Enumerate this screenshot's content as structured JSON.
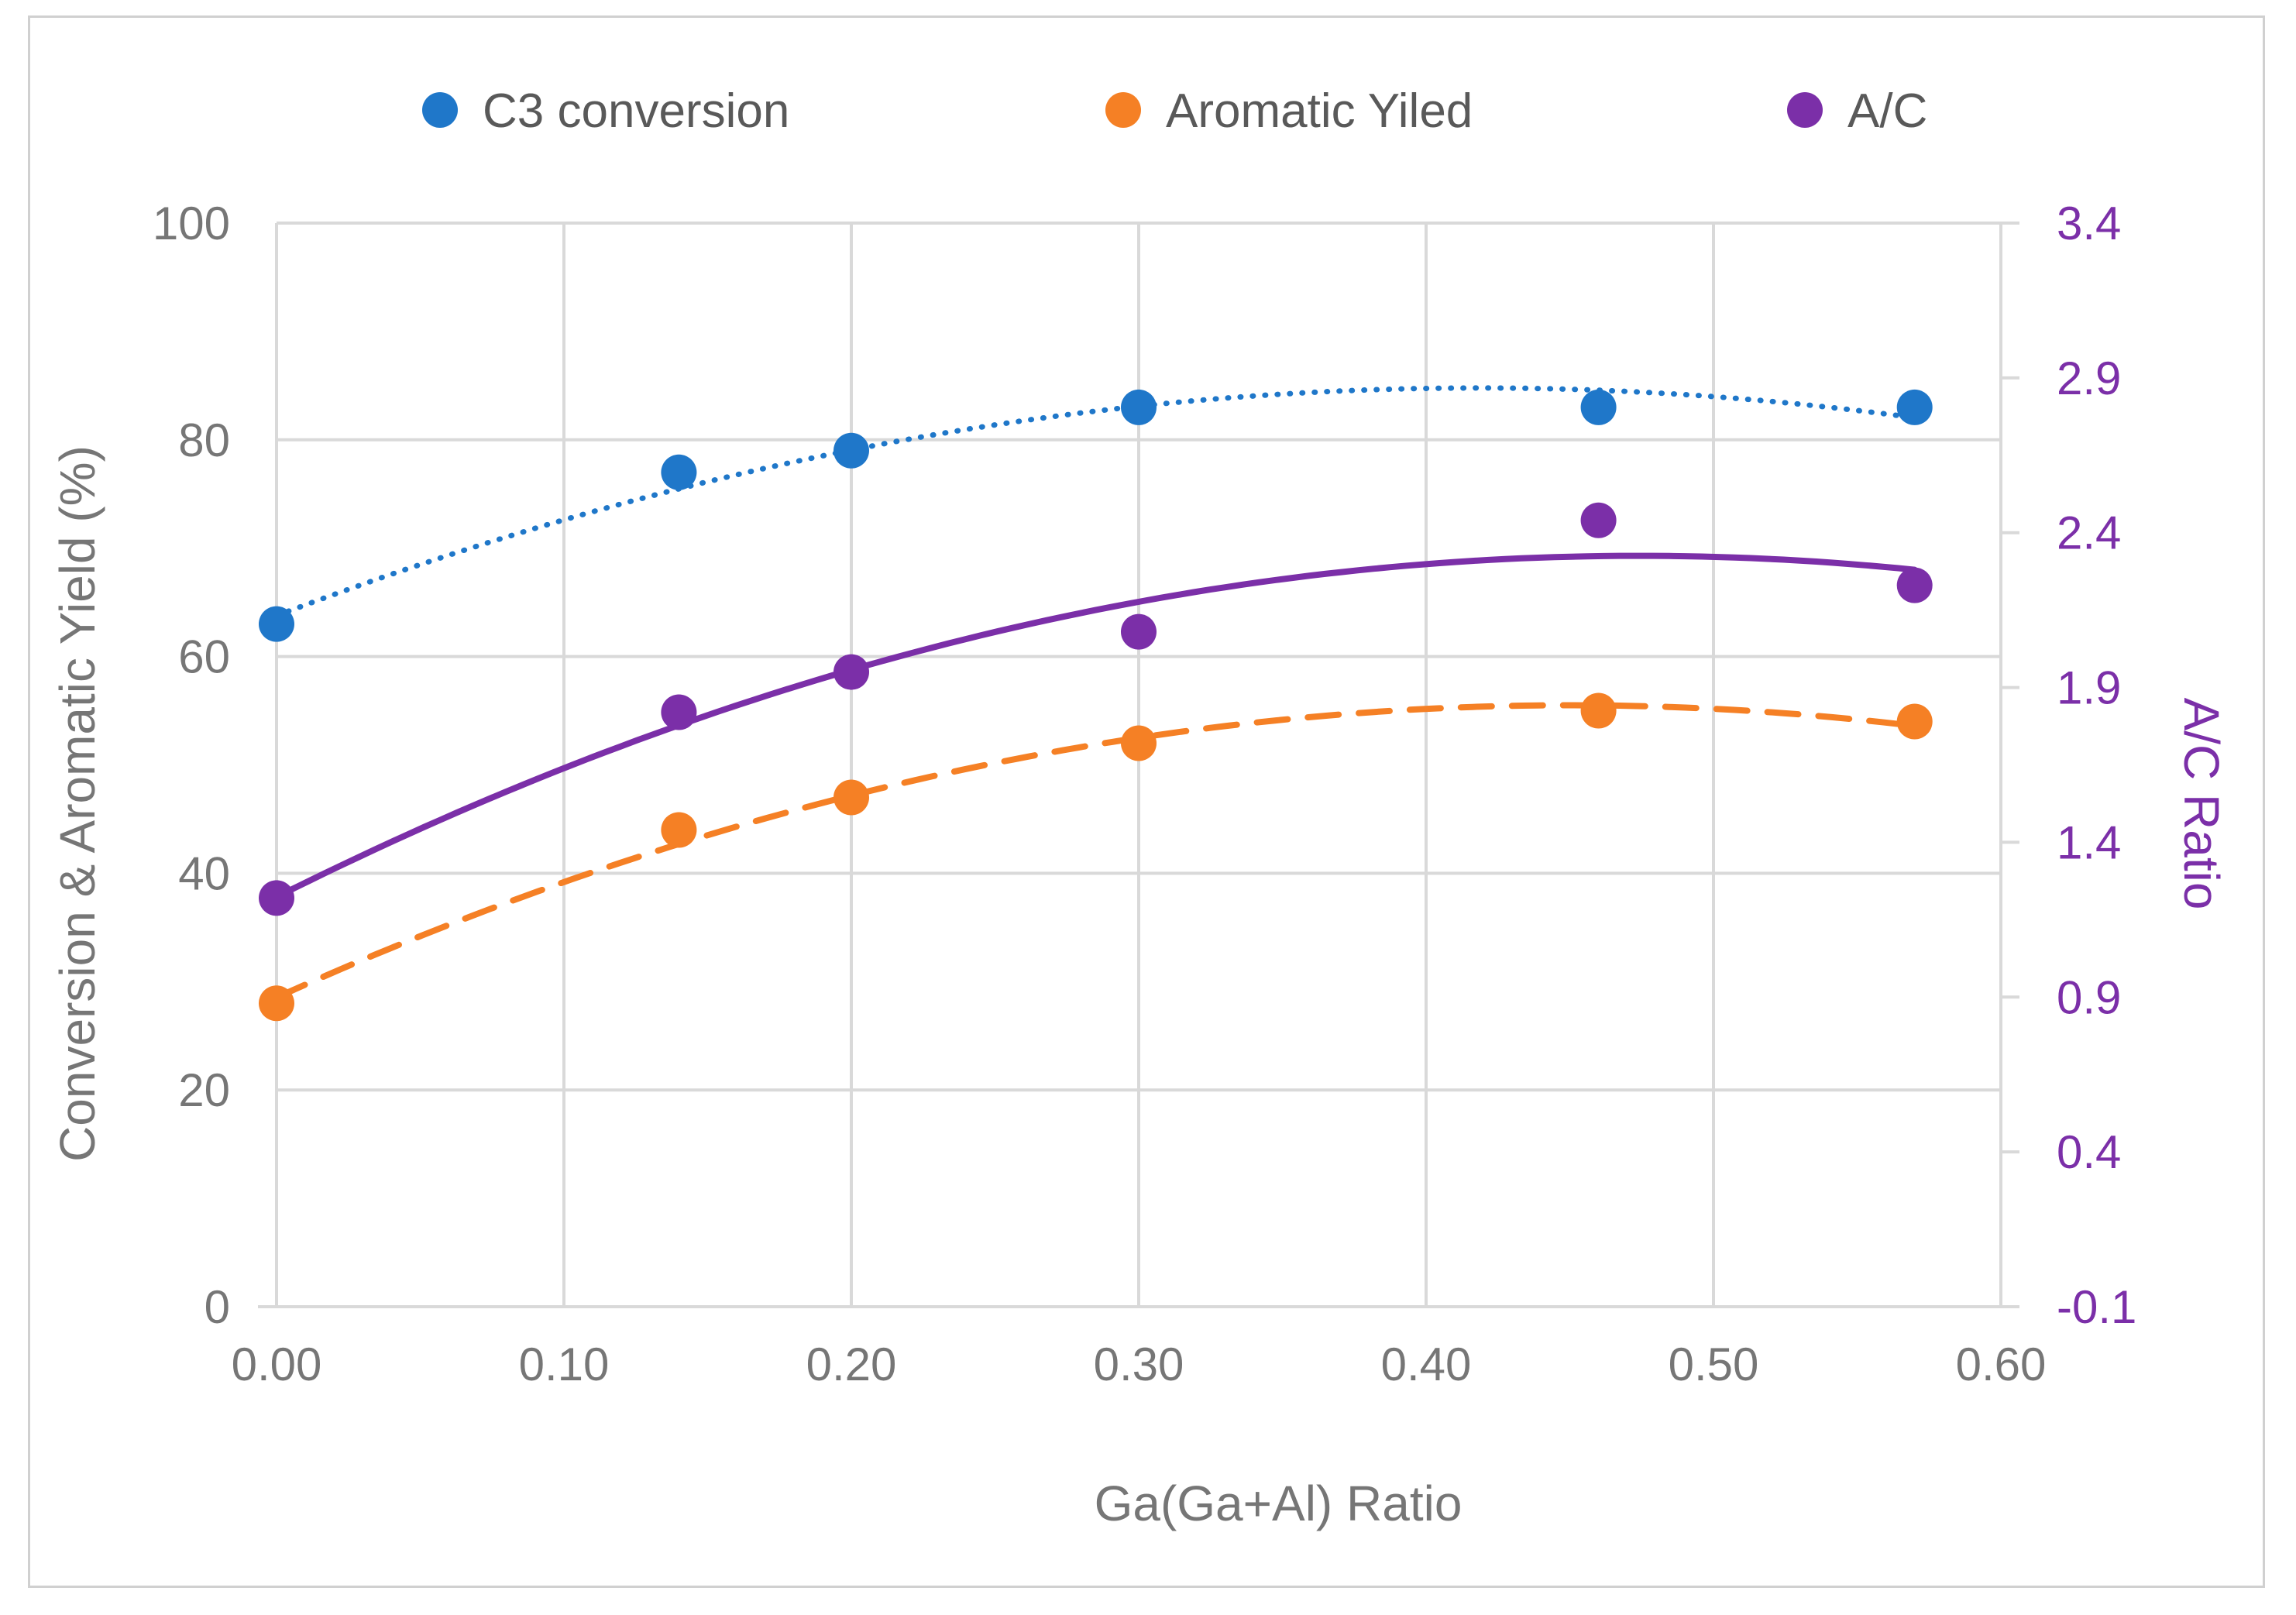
{
  "chart_data": {
    "type": "scatter",
    "title": "",
    "xlabel": "Ga(Ga+Al) Ratio",
    "ylabel": "Conversion & Aromatic Yield (%)",
    "y2label": "A/C Ratio",
    "xlim": [
      0.0,
      0.6
    ],
    "ylim": [
      0,
      100
    ],
    "y2lim": [
      -0.1,
      3.4
    ],
    "x_ticks": [
      "0.00",
      "0.10",
      "0.20",
      "0.30",
      "0.40",
      "0.50",
      "0.60"
    ],
    "y_ticks": [
      "0",
      "20",
      "40",
      "60",
      "80",
      "100"
    ],
    "y2_ticks": [
      "-0.1",
      "0.4",
      "0.9",
      "1.4",
      "1.9",
      "2.4",
      "2.9",
      "3.4"
    ],
    "grid": true,
    "legend_position": "top",
    "x": [
      0.0,
      0.14,
      0.2,
      0.3,
      0.46,
      0.57
    ],
    "series": [
      {
        "name": "C3 conversion",
        "axis": "left",
        "color": "#1f77c9",
        "trendline": "dotted",
        "values": [
          63,
          77,
          79,
          83,
          83,
          83
        ]
      },
      {
        "name": "Aromatic Yiled",
        "axis": "left",
        "color": "#f58025",
        "trendline": "dashed",
        "values": [
          28,
          44,
          47,
          52,
          55,
          54
        ]
      },
      {
        "name": "A/C",
        "axis": "right",
        "color": "#7b2fa8",
        "trendline": "solid",
        "values": [
          1.22,
          1.82,
          1.95,
          2.08,
          2.44,
          2.23
        ]
      }
    ]
  },
  "colors": {
    "grid": "#d9d9d9",
    "axis_text": "#767676",
    "right_axis": "#7b2fa8"
  }
}
